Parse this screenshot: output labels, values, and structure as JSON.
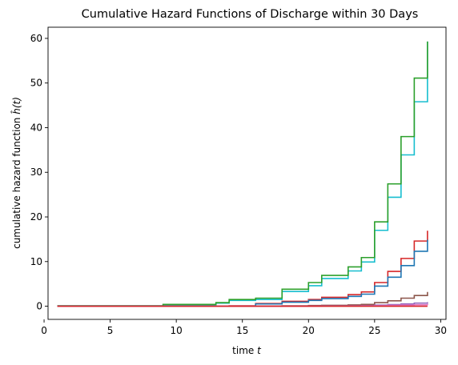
{
  "chart_data": {
    "type": "line",
    "step": "post",
    "title": "Cumulative Hazard Functions of Discharge within 30 Days",
    "xlabel": "time",
    "xlabel_var": "t",
    "ylabel": "cumulative hazard function",
    "ylabel_var": "ĥ(t)",
    "xlim": [
      0.3,
      30.4
    ],
    "ylim": [
      -2.95,
      62.5
    ],
    "xticks": [
      0,
      5,
      10,
      15,
      20,
      25,
      30
    ],
    "yticks": [
      0,
      10,
      20,
      30,
      40,
      50,
      60
    ],
    "grid": false,
    "legend": "none",
    "x": [
      1,
      2,
      3,
      4,
      5,
      6,
      7,
      8,
      9,
      10,
      11,
      12,
      13,
      14,
      15,
      16,
      17,
      18,
      19,
      20,
      21,
      22,
      23,
      24,
      25,
      26,
      27,
      28,
      29
    ],
    "series": [
      {
        "color": "#17becf",
        "values": [
          0.1,
          0.1,
          0.1,
          0.1,
          0.1,
          0.1,
          0.1,
          0.1,
          0.3,
          0.3,
          0.3,
          0.3,
          0.7,
          1.3,
          1.3,
          1.5,
          1.5,
          3.3,
          3.3,
          4.6,
          6.2,
          6.2,
          7.9,
          9.9,
          17.0,
          24.4,
          33.9,
          45.8,
          59.3
        ]
      },
      {
        "color": "#2ca02c",
        "values": [
          0.1,
          0.1,
          0.1,
          0.1,
          0.1,
          0.1,
          0.1,
          0.1,
          0.4,
          0.4,
          0.4,
          0.4,
          0.8,
          1.5,
          1.5,
          1.8,
          1.8,
          3.8,
          3.8,
          5.3,
          6.9,
          6.9,
          8.8,
          10.9,
          18.9,
          27.4,
          38.0,
          51.1,
          59.3
        ]
      },
      {
        "color": "#d62728",
        "values": [
          0,
          0,
          0,
          0,
          0,
          0,
          0,
          0,
          0,
          0,
          0,
          0,
          0,
          0.1,
          0.1,
          0.6,
          0.6,
          1.1,
          1.1,
          1.5,
          2.0,
          2.0,
          2.6,
          3.2,
          5.3,
          7.8,
          10.7,
          14.6,
          16.9
        ]
      },
      {
        "color": "#1f77b4",
        "values": [
          0,
          0,
          0,
          0,
          0,
          0,
          0,
          0,
          0,
          0,
          0,
          0,
          0,
          0.05,
          0.05,
          0.5,
          0.5,
          0.9,
          0.9,
          1.3,
          1.7,
          1.7,
          2.2,
          2.7,
          4.5,
          6.5,
          9.1,
          12.3,
          14.9
        ]
      },
      {
        "color": "#8c564b",
        "values": [
          0,
          0,
          0,
          0,
          0,
          0,
          0,
          0,
          0,
          0,
          0,
          0,
          0,
          0,
          0,
          0.05,
          0.05,
          0.1,
          0.1,
          0.15,
          0.2,
          0.2,
          0.3,
          0.4,
          0.8,
          1.2,
          1.8,
          2.4,
          3.2
        ]
      },
      {
        "color": "#9467bd",
        "values": [
          0,
          0,
          0,
          0,
          0,
          0,
          0,
          0,
          0,
          0,
          0,
          0,
          0,
          0,
          0,
          0,
          0,
          0.02,
          0.02,
          0.05,
          0.07,
          0.07,
          0.1,
          0.14,
          0.25,
          0.37,
          0.52,
          0.7,
          0.9
        ]
      },
      {
        "color": "#e377c2",
        "values": [
          0,
          0,
          0,
          0,
          0,
          0,
          0,
          0,
          0,
          0,
          0,
          0,
          0,
          0,
          0,
          0,
          0,
          0,
          0,
          0.02,
          0.03,
          0.03,
          0.05,
          0.07,
          0.12,
          0.17,
          0.24,
          0.32,
          0.5
        ]
      },
      {
        "color": "#d62728",
        "values": [
          0,
          0,
          0,
          0,
          0,
          0,
          0,
          0,
          0,
          0,
          0,
          0,
          0,
          0,
          0,
          0,
          0,
          0,
          0,
          0,
          0,
          0,
          0,
          0,
          0,
          0,
          0,
          0,
          0
        ]
      }
    ]
  }
}
